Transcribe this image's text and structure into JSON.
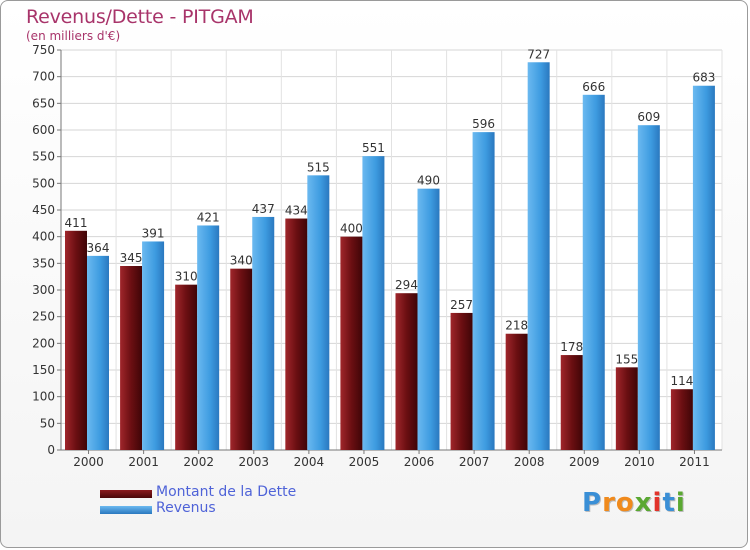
{
  "header": {
    "title": "Revenus/Dette - PITGAM",
    "subtitle": "(en milliers d'€)"
  },
  "legend": {
    "items": [
      {
        "label": "Montant de la Dette",
        "color": "#6b0f12"
      },
      {
        "label": "Revenus",
        "color": "#3d9be0"
      }
    ]
  },
  "logo": {
    "text": "Proxiti",
    "letters": [
      {
        "ch": "P",
        "color": "#3a8fd6"
      },
      {
        "ch": "r",
        "color": "#f08a1c"
      },
      {
        "ch": "o",
        "color": "#f08a1c"
      },
      {
        "ch": "x",
        "color": "#5aa832"
      },
      {
        "ch": "i",
        "color": "#e2332b"
      },
      {
        "ch": "t",
        "color": "#3a8fd6"
      },
      {
        "ch": "i",
        "color": "#5aa832"
      }
    ]
  },
  "chart_data": {
    "type": "bar",
    "title": "Revenus/Dette - PITGAM",
    "subtitle": "(en milliers d'€)",
    "categories": [
      "2000",
      "2001",
      "2002",
      "2003",
      "2004",
      "2005",
      "2006",
      "2007",
      "2008",
      "2009",
      "2010",
      "2011"
    ],
    "series": [
      {
        "name": "Montant de la Dette",
        "color": "#6b0f12",
        "values": [
          411,
          345,
          310,
          340,
          434,
          400,
          294,
          257,
          218,
          178,
          155,
          114
        ]
      },
      {
        "name": "Revenus",
        "color": "#3d9be0",
        "values": [
          364,
          391,
          421,
          437,
          515,
          551,
          490,
          596,
          727,
          666,
          609,
          683
        ]
      }
    ],
    "ylim": [
      0,
      750
    ],
    "yticks": [
      0,
      50,
      100,
      150,
      200,
      250,
      300,
      350,
      400,
      450,
      500,
      550,
      600,
      650,
      700,
      750
    ],
    "grid": true,
    "legend_position": "bottom-left"
  }
}
